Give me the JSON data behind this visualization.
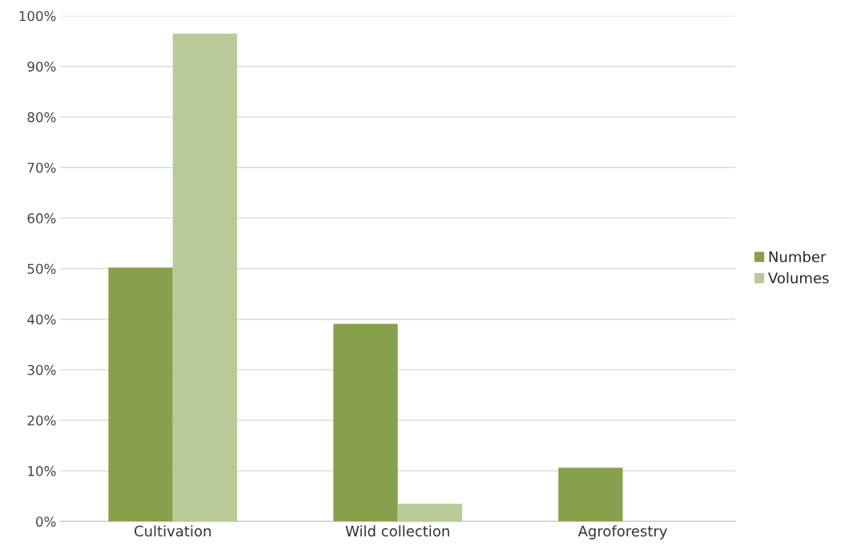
{
  "chart_data": {
    "type": "bar",
    "categories": [
      "Cultivation",
      "Wild collection",
      "Agroforestry"
    ],
    "series": [
      {
        "name": "Number",
        "color": "#86a04b",
        "values": [
          50.2,
          39.1,
          10.6
        ]
      },
      {
        "name": "Volumes",
        "color": "#b9ca98",
        "values": [
          96.5,
          3.5,
          null
        ]
      }
    ],
    "ylim": [
      0,
      100
    ],
    "yticks": [
      {
        "value": 0,
        "label": "0%"
      },
      {
        "value": 10,
        "label": "10%"
      },
      {
        "value": 20,
        "label": "20%"
      },
      {
        "value": 30,
        "label": "30%"
      },
      {
        "value": 40,
        "label": "40%"
      },
      {
        "value": 50,
        "label": "50%"
      },
      {
        "value": 60,
        "label": "60%"
      },
      {
        "value": 70,
        "label": "70%"
      },
      {
        "value": 80,
        "label": "80%"
      },
      {
        "value": 90,
        "label": "90%"
      },
      {
        "value": 100,
        "label": "100%"
      }
    ],
    "grid": "y",
    "legend": "right"
  }
}
